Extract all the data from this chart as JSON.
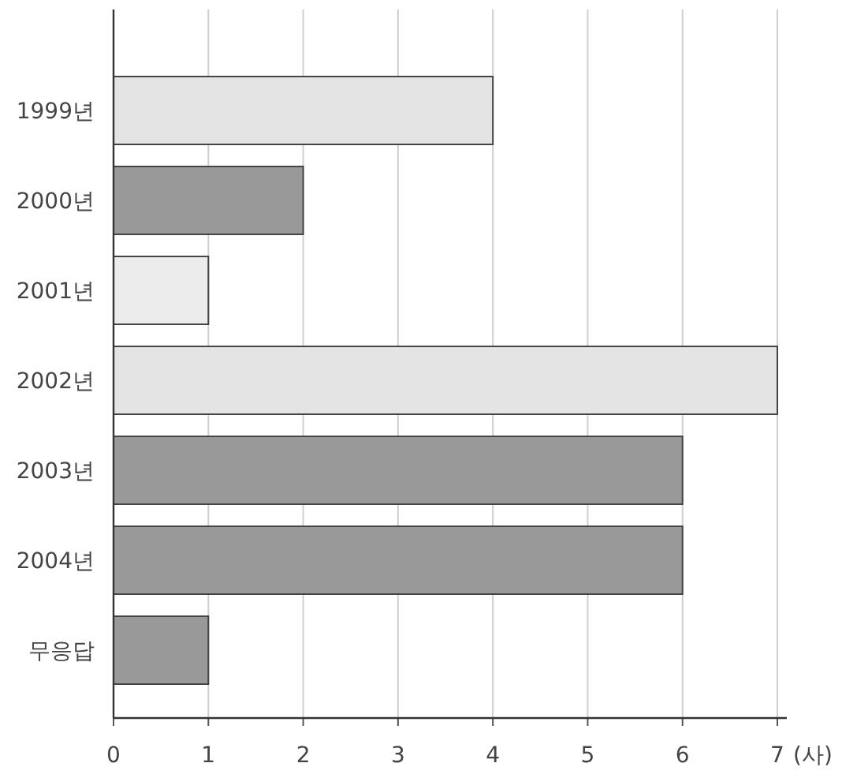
{
  "chart_data": {
    "type": "bar",
    "orientation": "horizontal",
    "categories": [
      "1999년",
      "2000년",
      "2001년",
      "2002년",
      "2003년",
      "2004년",
      "무응답"
    ],
    "values": [
      4,
      2,
      1,
      7,
      6,
      6,
      1
    ],
    "colors": [
      "#e4e4e4",
      "#999999",
      "#ececec",
      "#e4e4e4",
      "#999999",
      "#999999",
      "#999999"
    ],
    "xlim": [
      0,
      7
    ],
    "xticks": [
      0,
      1,
      2,
      3,
      4,
      5,
      6,
      7
    ],
    "xlabel": "(사)",
    "grid": "x"
  }
}
